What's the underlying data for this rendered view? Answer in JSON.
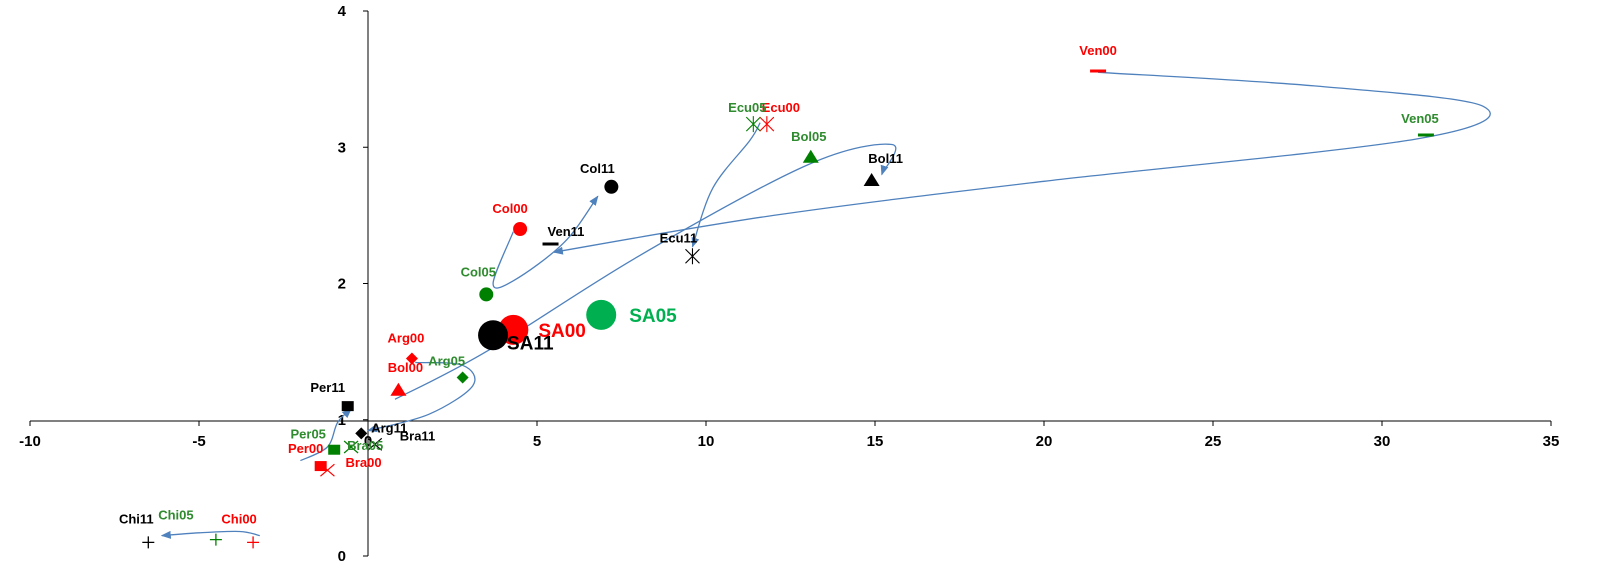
{
  "colors": {
    "y2000": "#ff0000",
    "y2005_marker": "#008000",
    "y2005_label": "#2e8b2e",
    "sa2005": "#00b050",
    "y2011": "#000000",
    "arrow": "#4f81bd",
    "axis": "#000000"
  },
  "chart_data": {
    "type": "scatter",
    "title": "",
    "xlabel": "",
    "ylabel": "",
    "xlim": [
      -10,
      35
    ],
    "ylim": [
      0,
      4
    ],
    "x_ticks": [
      "-10",
      "-5",
      "0",
      "5",
      "10",
      "15",
      "20",
      "25",
      "30",
      "35"
    ],
    "y_ticks": [
      "0",
      "1",
      "2",
      "3",
      "4"
    ],
    "grid": false,
    "legend": "none",
    "points": [
      {
        "label": "Ven00",
        "x": 21.6,
        "y": 3.56,
        "year": "2000",
        "marker": "dash"
      },
      {
        "label": "Ven05",
        "x": 31.3,
        "y": 3.09,
        "year": "2005",
        "marker": "dash"
      },
      {
        "label": "Ven11",
        "x": 5.4,
        "y": 2.29,
        "year": "2011",
        "marker": "dash"
      },
      {
        "label": "Ecu00",
        "x": 11.8,
        "y": 3.17,
        "year": "2000",
        "marker": "star"
      },
      {
        "label": "Ecu05",
        "x": 11.4,
        "y": 3.17,
        "year": "2005",
        "marker": "star"
      },
      {
        "label": "Ecu11",
        "x": 9.6,
        "y": 2.2,
        "year": "2011",
        "marker": "star"
      },
      {
        "label": "Bol00",
        "x": 0.9,
        "y": 1.22,
        "year": "2000",
        "marker": "triangle"
      },
      {
        "label": "Bol05",
        "x": 13.1,
        "y": 2.93,
        "year": "2005",
        "marker": "triangle"
      },
      {
        "label": "Bol11",
        "x": 14.9,
        "y": 2.76,
        "year": "2011",
        "marker": "triangle"
      },
      {
        "label": "Col00",
        "x": 4.5,
        "y": 2.4,
        "year": "2000",
        "marker": "circle"
      },
      {
        "label": "Col05",
        "x": 3.5,
        "y": 1.92,
        "year": "2005",
        "marker": "circle"
      },
      {
        "label": "Col11",
        "x": 7.2,
        "y": 2.71,
        "year": "2011",
        "marker": "circle"
      },
      {
        "label": "Arg00",
        "x": 1.3,
        "y": 1.45,
        "year": "2000",
        "marker": "diamond"
      },
      {
        "label": "Arg05",
        "x": 2.8,
        "y": 1.31,
        "year": "2005",
        "marker": "diamond"
      },
      {
        "label": "Arg11",
        "x": -0.2,
        "y": 0.9,
        "year": "2011",
        "marker": "diamond"
      },
      {
        "label": "Per00",
        "x": -1.4,
        "y": 0.66,
        "year": "2000",
        "marker": "square"
      },
      {
        "label": "Per05",
        "x": -1.0,
        "y": 0.78,
        "year": "2005",
        "marker": "square"
      },
      {
        "label": "Per11",
        "x": -0.6,
        "y": 1.1,
        "year": "2011",
        "marker": "square"
      },
      {
        "label": "Bra00",
        "x": -1.2,
        "y": 0.63,
        "year": "2000",
        "marker": "x"
      },
      {
        "label": "Bra05",
        "x": -0.5,
        "y": 0.8,
        "year": "2005",
        "marker": "x"
      },
      {
        "label": "Bra11",
        "x": 0.2,
        "y": 0.82,
        "year": "2011",
        "marker": "x"
      },
      {
        "label": "Chi00",
        "x": -3.4,
        "y": 0.1,
        "year": "2000",
        "marker": "plus"
      },
      {
        "label": "Chi05",
        "x": -4.5,
        "y": 0.12,
        "year": "2005",
        "marker": "plus"
      },
      {
        "label": "Chi11",
        "x": -6.5,
        "y": 0.1,
        "year": "2011",
        "marker": "plus"
      },
      {
        "label": "SA00",
        "x": 4.3,
        "y": 1.66,
        "year": "2000",
        "marker": "big-circle"
      },
      {
        "label": "SA05",
        "x": 6.9,
        "y": 1.77,
        "year": "2005",
        "marker": "big-circle"
      },
      {
        "label": "SA11",
        "x": 3.7,
        "y": 1.62,
        "year": "2011",
        "marker": "big-circle"
      }
    ],
    "trajectories": [
      {
        "name": "Ven",
        "points": [
          [
            21.6,
            3.55
          ],
          [
            28,
            3.45
          ],
          [
            33,
            3.3
          ],
          [
            31,
            3.06
          ],
          [
            20,
            2.75
          ],
          [
            12,
            2.5
          ],
          [
            5.5,
            2.23
          ]
        ]
      },
      {
        "name": "Ecu",
        "points": [
          [
            11.6,
            3.18
          ],
          [
            11.3,
            3.05
          ],
          [
            10.2,
            2.7
          ],
          [
            9.6,
            2.27
          ]
        ]
      },
      {
        "name": "Bol",
        "points": [
          [
            0.8,
            1.15
          ],
          [
            3.5,
            1.5
          ],
          [
            8,
            2.2
          ],
          [
            13,
            2.87
          ],
          [
            15.5,
            3.02
          ],
          [
            15.2,
            2.8
          ]
        ]
      },
      {
        "name": "Col",
        "points": [
          [
            4.3,
            2.38
          ],
          [
            3.7,
            2.0
          ],
          [
            4.3,
            2.02
          ],
          [
            5.8,
            2.3
          ],
          [
            6.8,
            2.64
          ]
        ]
      },
      {
        "name": "Arg",
        "points": [
          [
            1.4,
            1.42
          ],
          [
            2.8,
            1.4
          ],
          [
            3.1,
            1.25
          ],
          [
            1.8,
            1.04
          ],
          [
            0,
            0.92
          ]
        ]
      },
      {
        "name": "Per",
        "points": [
          [
            -2.0,
            0.7
          ],
          [
            -1.2,
            0.8
          ],
          [
            -0.9,
            0.98
          ],
          [
            -0.5,
            1.08
          ]
        ]
      },
      {
        "name": "Chi",
        "points": [
          [
            -3.2,
            0.15
          ],
          [
            -3.8,
            0.18
          ],
          [
            -5.0,
            0.17
          ],
          [
            -6.1,
            0.15
          ]
        ]
      }
    ]
  }
}
